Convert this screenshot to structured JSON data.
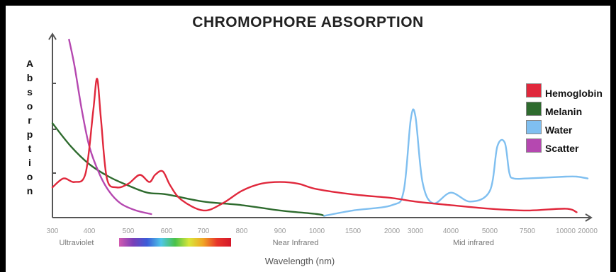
{
  "chart_data": {
    "type": "line",
    "title": "CHROMOPHORE ABSORPTION",
    "ylabel": "Absorption",
    "xlabel": "Wavelength (nm)",
    "x_ticks": [
      "300",
      "400",
      "500",
      "600",
      "700",
      "800",
      "900",
      "1000",
      "1500",
      "2000",
      "3000",
      "4000",
      "5000",
      "7500",
      "10000",
      "20000"
    ],
    "bands": [
      "Ultraviolet",
      "Near Infrared",
      "Mid infrared"
    ],
    "series": [
      {
        "name": "Hemoglobin",
        "color": "#e0283c",
        "x": [
          300,
          330,
          360,
          390,
          410,
          420,
          430,
          445,
          470,
          500,
          530,
          555,
          570,
          590,
          610,
          640,
          700,
          750,
          800,
          850,
          900,
          950,
          1000,
          1500,
          2000,
          3000,
          4000,
          5000,
          7500,
          10000,
          15000
        ],
        "y": [
          0.17,
          0.22,
          0.2,
          0.25,
          0.6,
          0.78,
          0.55,
          0.22,
          0.17,
          0.19,
          0.24,
          0.2,
          0.24,
          0.26,
          0.18,
          0.1,
          0.04,
          0.08,
          0.15,
          0.19,
          0.2,
          0.19,
          0.16,
          0.13,
          0.11,
          0.09,
          0.07,
          0.05,
          0.04,
          0.05,
          0.03
        ]
      },
      {
        "name": "Melanin",
        "color": "#2e6b2e",
        "x": [
          300,
          350,
          400,
          450,
          500,
          550,
          600,
          700,
          800,
          900,
          1000,
          1100
        ],
        "y": [
          0.53,
          0.4,
          0.3,
          0.23,
          0.18,
          0.14,
          0.13,
          0.09,
          0.07,
          0.04,
          0.02,
          0.01
        ]
      },
      {
        "name": "Water",
        "color": "#7fbff0",
        "x": [
          1100,
          1500,
          2000,
          2500,
          2800,
          3000,
          3200,
          3500,
          4000,
          4500,
          5000,
          5500,
          6000,
          6300,
          6600,
          7500,
          10000,
          15000,
          20000
        ],
        "y": [
          0.01,
          0.04,
          0.07,
          0.15,
          0.55,
          0.57,
          0.2,
          0.08,
          0.14,
          0.09,
          0.15,
          0.4,
          0.42,
          0.25,
          0.22,
          0.22,
          0.23,
          0.23,
          0.22
        ]
      },
      {
        "name": "Scatter",
        "color": "#b548b0",
        "x": [
          345,
          360,
          380,
          400,
          425,
          450,
          480,
          520,
          560
        ],
        "y": [
          1.0,
          0.85,
          0.6,
          0.4,
          0.25,
          0.15,
          0.08,
          0.04,
          0.02
        ]
      }
    ],
    "ylim": [
      0,
      1
    ],
    "legend_position": "right",
    "spectrum_colors": [
      "#d25ab0",
      "#7a3fb8",
      "#3b5cd8",
      "#4fc6e8",
      "#49c24a",
      "#d9e63a",
      "#f0a524",
      "#e8362a",
      "#d4182a"
    ]
  }
}
